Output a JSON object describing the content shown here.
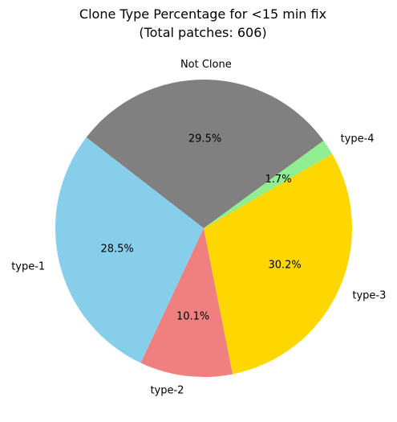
{
  "chart_data": {
    "type": "pie",
    "title": "Clone Type Percentage for <15 min fix",
    "subtitle": "(Total patches: 606)",
    "slices": [
      {
        "label": "Not Clone",
        "value": 29.5,
        "pct_label": "29.5%",
        "color": "#808080"
      },
      {
        "label": "type-1",
        "value": 28.5,
        "pct_label": "28.5%",
        "color": "#87CEEB"
      },
      {
        "label": "type-2",
        "value": 10.1,
        "pct_label": "10.1%",
        "color": "#F08080"
      },
      {
        "label": "type-3",
        "value": 30.2,
        "pct_label": "30.2%",
        "color": "#FFD700"
      },
      {
        "label": "type-4",
        "value": 1.7,
        "pct_label": "1.7%",
        "color": "#90EE90"
      }
    ]
  }
}
